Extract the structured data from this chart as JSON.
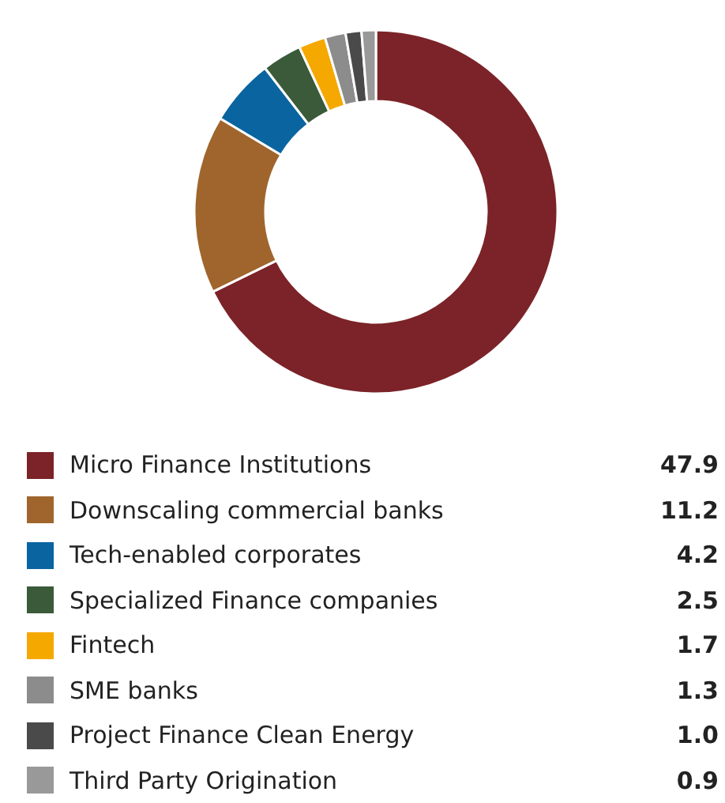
{
  "chart_data": {
    "type": "donut",
    "categories": [
      "Micro Finance Institutions",
      "Downscaling commercial banks",
      "Tech-enabled corporates",
      "Specialized Finance companies",
      "Fintech",
      "SME banks",
      "Project Finance Clean Energy",
      "Third Party Origination"
    ],
    "values": [
      47.9,
      11.2,
      4.2,
      2.5,
      1.7,
      1.3,
      1.0,
      0.9
    ],
    "colors": [
      "#7b2328",
      "#a0652c",
      "#0a64a0",
      "#3a5a3a",
      "#f5a800",
      "#8c8c8c",
      "#4a4a4a",
      "#999999"
    ],
    "value_labels": [
      "47.9",
      "11.2",
      "4.2",
      "2.5",
      "1.7",
      "1.3",
      "1.0",
      "0.9"
    ],
    "legend": "bottom"
  }
}
